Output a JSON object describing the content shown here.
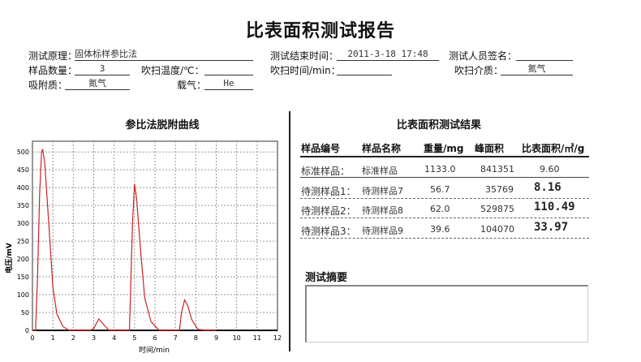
{
  "report": {
    "title": "比表面积测试报告"
  },
  "header": {
    "principle_label": "测试原理：",
    "principle": "固体标样参比法",
    "end_time_label": "测试结束时间：",
    "end_time": "2011-3-18 17:48",
    "tester_label": "测试人员签名：",
    "tester": "",
    "sample_count_label": "样品数量：",
    "sample_count": "3",
    "purge_temp_label": "吹扫温度/℃：",
    "purge_temp": "",
    "purge_time_label": "吹扫时间/min：",
    "purge_time": "",
    "purge_medium_label": "吹扫介质：",
    "purge_medium": "氮气",
    "adsorbate_label": "吸附质：",
    "adsorbate": "氮气",
    "carrier_label": "载气：",
    "carrier": "He"
  },
  "chart_section": {
    "title": "参比法脱附曲线"
  },
  "results": {
    "title": "比表面积测试结果",
    "columns": [
      "样品编号",
      "样品名称",
      "重量/mg",
      "峰面积",
      "比表面积/㎡/g"
    ],
    "rows": [
      {
        "id": "标准样品：",
        "name": "标准样品",
        "weight": "1133.0",
        "area": "841351",
        "ssa": "9.60"
      },
      {
        "id": "待测样品1：",
        "name": "待测样品7",
        "weight": "56.7",
        "area": "35769",
        "ssa": "8.16"
      },
      {
        "id": "待测样品2：",
        "name": "待测样品8",
        "weight": "62.0",
        "area": "529875",
        "ssa": "110.49"
      },
      {
        "id": "待测样品3：",
        "name": "待测样品9",
        "weight": "39.6",
        "area": "104070",
        "ssa": "33.97"
      }
    ]
  },
  "summary": {
    "title": "测试摘要",
    "text": ""
  },
  "chart_data": {
    "type": "line",
    "xlabel": "时间/min",
    "ylabel": "电压/mV",
    "xlim": [
      0,
      12
    ],
    "ylim": [
      0,
      530
    ],
    "xticks": [
      0,
      1,
      2,
      3,
      4,
      5,
      6,
      7,
      8,
      9,
      10,
      11,
      12
    ],
    "yticks": [
      0,
      50,
      100,
      150,
      200,
      250,
      300,
      350,
      400,
      450,
      500
    ],
    "grid": true,
    "line_color": "#cc2222",
    "series": [
      {
        "x": [
          0,
          0.15,
          0.25,
          0.35,
          0.45,
          0.5,
          0.6,
          0.8,
          1.0,
          1.2,
          1.5,
          1.8,
          2.8,
          3.0,
          3.25,
          3.5,
          3.75,
          4.75,
          4.8,
          4.9,
          5.0,
          5.1,
          5.3,
          5.5,
          5.8,
          6.2,
          7.2,
          7.3,
          7.45,
          7.6,
          7.8,
          8.1,
          8.5,
          9.0
        ],
        "y": [
          0,
          0,
          150,
          380,
          500,
          508,
          470,
          300,
          120,
          45,
          10,
          0,
          0,
          5,
          32,
          15,
          0,
          0,
          100,
          300,
          410,
          370,
          220,
          90,
          25,
          0,
          0,
          50,
          85,
          70,
          30,
          3,
          0,
          0
        ]
      }
    ]
  }
}
